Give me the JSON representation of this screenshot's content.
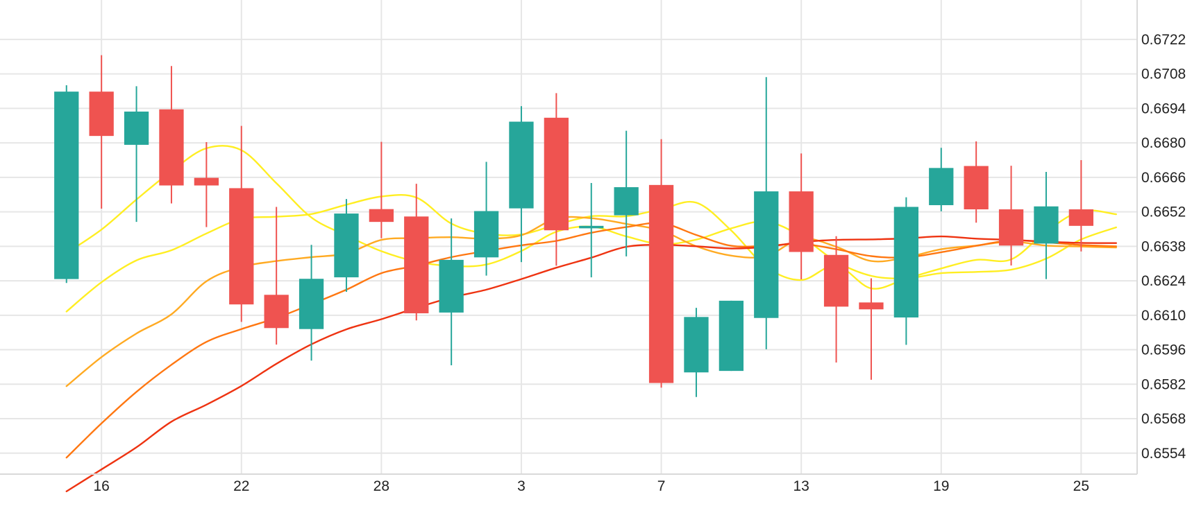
{
  "chart_data": {
    "type": "candlestick",
    "y_ticks": [
      "0.6722",
      "0.6708",
      "0.6694",
      "0.6680",
      "0.6666",
      "0.6652",
      "0.6638",
      "0.6624",
      "0.6610",
      "0.6596",
      "0.6582",
      "0.6568",
      "0.6554"
    ],
    "x_ticks": [
      {
        "label": "16",
        "index": 1
      },
      {
        "label": "22",
        "index": 5
      },
      {
        "label": "28",
        "index": 9
      },
      {
        "label": "3",
        "index": 13
      },
      {
        "label": "7",
        "index": 17
      },
      {
        "label": "13",
        "index": 21
      },
      {
        "label": "19",
        "index": 25
      },
      {
        "label": "25",
        "index": 29
      }
    ],
    "ylim": [
      0.65455,
      0.6738
    ],
    "x_range": [
      -1.9,
      30.6
    ],
    "grid": true,
    "colors": {
      "up": "#26a69a",
      "down": "#ef5350",
      "grid": "#e6e6e6",
      "axis": "#d9d9d9"
    },
    "candles": [
      {
        "o": 0.66247,
        "h": 0.67034,
        "l": 0.66231,
        "c": 0.67008
      },
      {
        "o": 0.67008,
        "h": 0.67156,
        "l": 0.66533,
        "c": 0.66828
      },
      {
        "o": 0.66792,
        "h": 0.6703,
        "l": 0.66479,
        "c": 0.66927
      },
      {
        "o": 0.66936,
        "h": 0.67112,
        "l": 0.66554,
        "c": 0.66627
      },
      {
        "o": 0.66658,
        "h": 0.66803,
        "l": 0.66458,
        "c": 0.66627
      },
      {
        "o": 0.66616,
        "h": 0.66869,
        "l": 0.66073,
        "c": 0.66144
      },
      {
        "o": 0.66183,
        "h": 0.6654,
        "l": 0.65981,
        "c": 0.66048
      },
      {
        "o": 0.66044,
        "h": 0.66386,
        "l": 0.65916,
        "c": 0.66248
      },
      {
        "o": 0.66254,
        "h": 0.66572,
        "l": 0.66195,
        "c": 0.66513
      },
      {
        "o": 0.66531,
        "h": 0.66804,
        "l": 0.66413,
        "c": 0.66479
      },
      {
        "o": 0.66501,
        "h": 0.66634,
        "l": 0.66079,
        "c": 0.66108
      },
      {
        "o": 0.66111,
        "h": 0.66493,
        "l": 0.65897,
        "c": 0.66325
      },
      {
        "o": 0.66335,
        "h": 0.66723,
        "l": 0.66261,
        "c": 0.66523
      },
      {
        "o": 0.66534,
        "h": 0.66949,
        "l": 0.66316,
        "c": 0.66886
      },
      {
        "o": 0.66902,
        "h": 0.67002,
        "l": 0.66301,
        "c": 0.66445
      },
      {
        "o": 0.66453,
        "h": 0.66637,
        "l": 0.66254,
        "c": 0.66463
      },
      {
        "o": 0.66506,
        "h": 0.66849,
        "l": 0.66339,
        "c": 0.6662
      },
      {
        "o": 0.66629,
        "h": 0.66815,
        "l": 0.65806,
        "c": 0.65825
      },
      {
        "o": 0.65868,
        "h": 0.6613,
        "l": 0.65768,
        "c": 0.66093
      },
      {
        "o": 0.65874,
        "h": 0.66159,
        "l": 0.65874,
        "c": 0.66159
      },
      {
        "o": 0.66089,
        "h": 0.67067,
        "l": 0.65962,
        "c": 0.66603
      },
      {
        "o": 0.66603,
        "h": 0.66757,
        "l": 0.66246,
        "c": 0.66357
      },
      {
        "o": 0.66345,
        "h": 0.66421,
        "l": 0.65908,
        "c": 0.66135
      },
      {
        "o": 0.66152,
        "h": 0.6625,
        "l": 0.65838,
        "c": 0.66124
      },
      {
        "o": 0.66091,
        "h": 0.66579,
        "l": 0.6598,
        "c": 0.6654
      },
      {
        "o": 0.66547,
        "h": 0.6678,
        "l": 0.66522,
        "c": 0.66698
      },
      {
        "o": 0.66706,
        "h": 0.66806,
        "l": 0.66476,
        "c": 0.6653
      },
      {
        "o": 0.6653,
        "h": 0.66707,
        "l": 0.66302,
        "c": 0.66383
      },
      {
        "o": 0.66391,
        "h": 0.66682,
        "l": 0.66247,
        "c": 0.66542
      },
      {
        "o": 0.6653,
        "h": 0.6673,
        "l": 0.66359,
        "c": 0.66463
      }
    ],
    "moving_averages": [
      {
        "color": "#ffee22",
        "start": 0,
        "values": [
          0.66353,
          0.66448,
          0.6657,
          0.66685,
          0.66778,
          0.6677,
          0.66636,
          0.66497,
          0.66424,
          0.6636,
          0.66318,
          0.663,
          0.66306,
          0.66361,
          0.66439,
          0.6646,
          0.6642,
          0.66389,
          0.66407,
          0.66453,
          0.6648,
          0.6642,
          0.66318,
          0.6626,
          0.6625,
          0.66271,
          0.66276,
          0.66285,
          0.6633,
          0.66408,
          0.66457
        ]
      },
      {
        "color": "#ffee22",
        "start": 0,
        "values": [
          0.66115,
          0.66234,
          0.66323,
          0.66364,
          0.66432,
          0.66491,
          0.665,
          0.66511,
          0.66549,
          0.66582,
          0.66578,
          0.66472,
          0.66431,
          0.66428,
          0.66468,
          0.66502,
          0.66502,
          0.66531,
          0.66557,
          0.66444,
          0.66296,
          0.66243,
          0.66302,
          0.66209,
          0.66249,
          0.6629,
          0.66325,
          0.66327,
          0.6644,
          0.66523,
          0.6651
        ]
      },
      {
        "color": "#ffaa22",
        "start": 0,
        "values": [
          0.65812,
          0.6593,
          0.66026,
          0.66104,
          0.66238,
          0.66296,
          0.6632,
          0.66336,
          0.66351,
          0.66406,
          0.66413,
          0.66417,
          0.66411,
          0.66425,
          0.66493,
          0.66494,
          0.66471,
          0.66444,
          0.6638,
          0.66342,
          0.6634,
          0.66411,
          0.66378,
          0.6632,
          0.66335,
          0.66368,
          0.66383,
          0.66399,
          0.66383,
          0.66379,
          0.66375
        ]
      },
      {
        "color": "#ff7711",
        "start": 0,
        "values": [
          0.65522,
          0.65661,
          0.65789,
          0.65899,
          0.65992,
          0.66044,
          0.66089,
          0.66145,
          0.66204,
          0.66271,
          0.66301,
          0.66336,
          0.66361,
          0.66384,
          0.66402,
          0.66435,
          0.66458,
          0.66474,
          0.66426,
          0.66382,
          0.66382,
          0.6639,
          0.66368,
          0.6634,
          0.66335,
          0.66356,
          0.66382,
          0.66404,
          0.66396,
          0.66385,
          0.6638
        ]
      },
      {
        "color": "#ee3311",
        "start": 0,
        "values": [
          0.65385,
          0.65474,
          0.65564,
          0.65668,
          0.65737,
          0.65813,
          0.65903,
          0.65982,
          0.66043,
          0.66084,
          0.6613,
          0.66172,
          0.66204,
          0.66247,
          0.66293,
          0.66334,
          0.66378,
          0.66386,
          0.6638,
          0.66371,
          0.66378,
          0.66397,
          0.66406,
          0.66408,
          0.66412,
          0.6642,
          0.66411,
          0.66406,
          0.66399,
          0.66394,
          0.66393
        ]
      }
    ]
  }
}
